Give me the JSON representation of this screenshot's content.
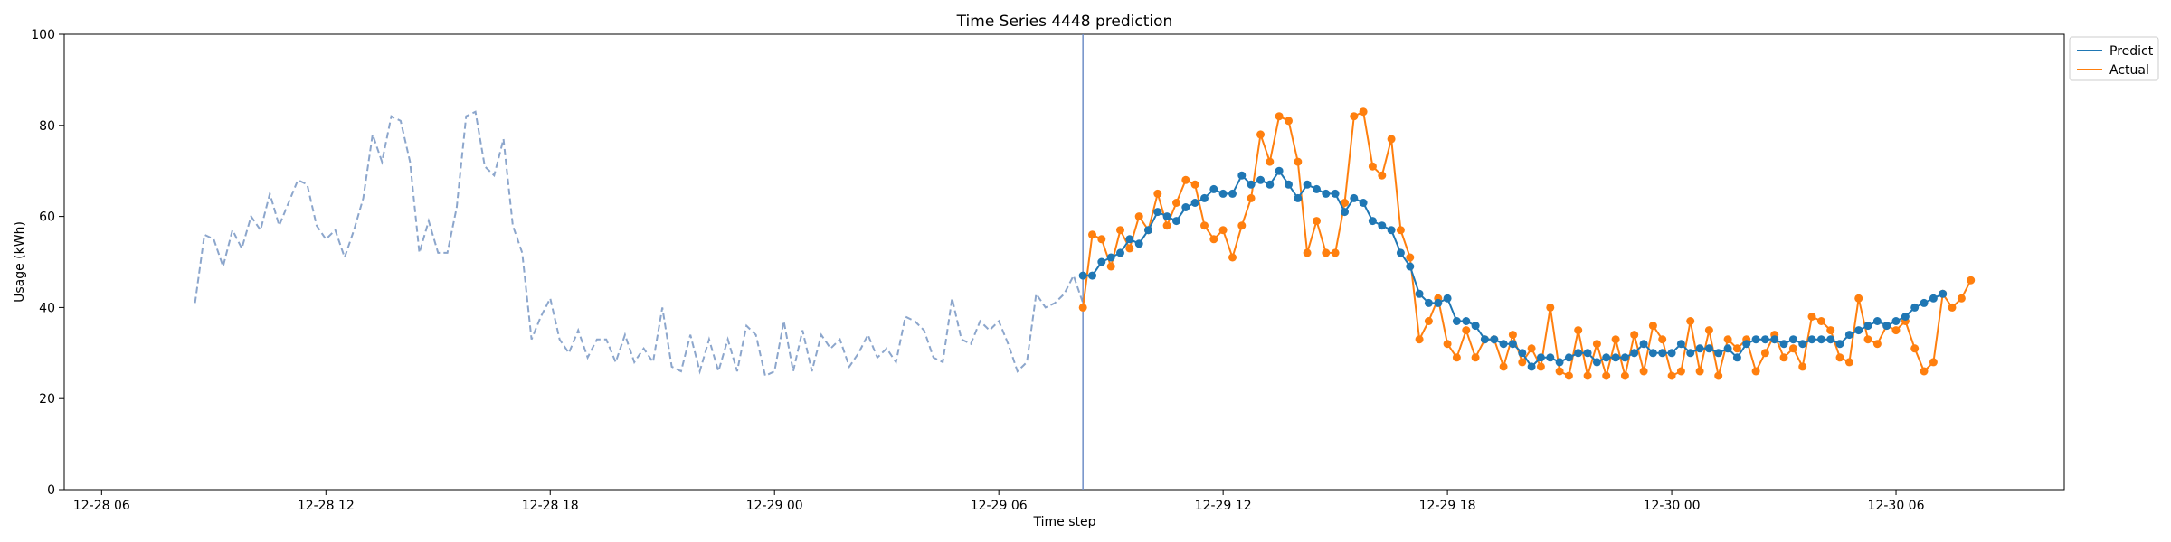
{
  "chart_data": {
    "type": "line",
    "title": "Time Series 4448 prediction",
    "xlabel": "Time step",
    "ylabel": "Usage (kWh)",
    "ylim": [
      0,
      100
    ],
    "yticks": [
      "0",
      "20",
      "40",
      "60",
      "80",
      "100"
    ],
    "xticks": [
      {
        "label": "12-28 06",
        "t": "2020-12-28T06:00"
      },
      {
        "label": "12-28 12",
        "t": "2020-12-28T12:00"
      },
      {
        "label": "12-28 18",
        "t": "2020-12-28T18:00"
      },
      {
        "label": "12-29 00",
        "t": "2020-12-29T00:00"
      },
      {
        "label": "12-29 06",
        "t": "2020-12-29T06:00"
      },
      {
        "label": "12-29 12",
        "t": "2020-12-29T12:00"
      },
      {
        "label": "12-29 18",
        "t": "2020-12-29T18:00"
      },
      {
        "label": "12-30 00",
        "t": "2020-12-30T00:00"
      },
      {
        "label": "12-30 06",
        "t": "2020-12-30T06:00"
      }
    ],
    "xlim": [
      "2020-12-28T05:00",
      "2020-12-30T10:30"
    ],
    "history": {
      "start": "2020-12-28T08:30",
      "interval_minutes": 15,
      "style": "dashed",
      "color": "#8ca6cc",
      "values": [
        41,
        56,
        55,
        49,
        57,
        53,
        60,
        57,
        65,
        58,
        63,
        68,
        67,
        58,
        55,
        57,
        51,
        57,
        64,
        78,
        72,
        82,
        81,
        72,
        52,
        59,
        52,
        52,
        62,
        82,
        83,
        71,
        69,
        77,
        58,
        52,
        33,
        38,
        42,
        33,
        30,
        35,
        29,
        33,
        33,
        28,
        34,
        28,
        31,
        28,
        40,
        27,
        26,
        34,
        26,
        33,
        26,
        33,
        26,
        36,
        34,
        25,
        26,
        37,
        26,
        35,
        26,
        34,
        31,
        33,
        27,
        30,
        34,
        29,
        31,
        28,
        38,
        37,
        35,
        29,
        28,
        42,
        33,
        32,
        37,
        35,
        37,
        32,
        26,
        28,
        43,
        40,
        41,
        43,
        47,
        41
      ]
    },
    "split_time": "2020-12-29T08:15",
    "forecast_start": "2020-12-29T08:15",
    "forecast_interval_minutes": 15,
    "series": [
      {
        "name": "Predict",
        "color": "#1f77b4",
        "values": [
          47,
          47,
          50,
          51,
          52,
          55,
          54,
          57,
          61,
          60,
          59,
          62,
          63,
          64,
          66,
          65,
          65,
          69,
          67,
          68,
          67,
          70,
          67,
          64,
          67,
          66,
          65,
          65,
          61,
          64,
          63,
          59,
          58,
          57,
          52,
          49,
          43,
          41,
          41,
          42,
          37,
          37,
          36,
          33,
          33,
          32,
          32,
          30,
          27,
          29,
          29,
          28,
          29,
          30,
          30,
          28,
          29,
          29,
          29,
          30,
          32,
          30,
          30,
          30,
          32,
          30,
          31,
          31,
          30,
          31,
          29,
          32,
          33,
          33,
          33,
          32,
          33,
          32,
          33,
          33,
          33,
          32,
          34,
          35,
          36,
          37,
          36,
          37,
          38,
          40,
          41,
          42,
          43
        ]
      },
      {
        "name": "Actual",
        "color": "#ff7f0e",
        "values": [
          40,
          56,
          55,
          49,
          57,
          53,
          60,
          57,
          65,
          58,
          63,
          68,
          67,
          58,
          55,
          57,
          51,
          58,
          64,
          78,
          72,
          82,
          81,
          72,
          52,
          59,
          52,
          52,
          63,
          82,
          83,
          71,
          69,
          77,
          57,
          51,
          33,
          37,
          42,
          32,
          29,
          35,
          29,
          33,
          33,
          27,
          34,
          28,
          31,
          27,
          40,
          26,
          25,
          35,
          25,
          32,
          25,
          33,
          25,
          34,
          26,
          36,
          33,
          25,
          26,
          37,
          26,
          35,
          25,
          33,
          31,
          33,
          26,
          30,
          34,
          29,
          31,
          27,
          38,
          37,
          35,
          29,
          28,
          42,
          33,
          32,
          36,
          35,
          37,
          31,
          26,
          28,
          43,
          40,
          42,
          46
        ]
      }
    ],
    "legend": {
      "position": "outside-top-right"
    },
    "grid": false
  }
}
